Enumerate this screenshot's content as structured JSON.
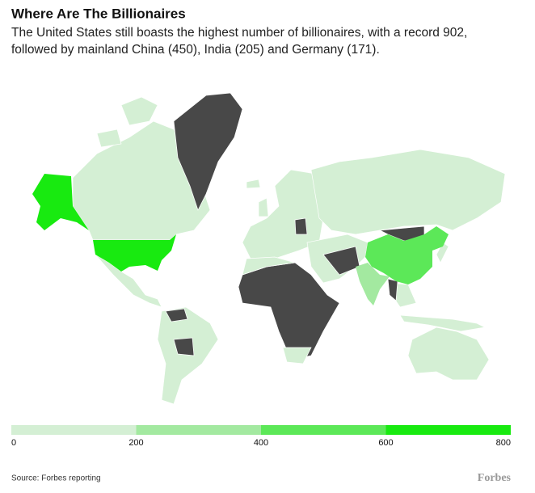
{
  "chart_data": {
    "type": "choropleth",
    "title": "Where Are The Billionaires",
    "subtitle": [
      "The United States still boasts the highest number of billionaires, with a record 902,",
      "followed by mainland China (450), India (205) and Germany (171)."
    ],
    "values": [
      902,
      450,
      205,
      171
    ],
    "legend": {
      "ticks": [
        0,
        200,
        400,
        600,
        800
      ],
      "colors": [
        "#d4efd4",
        "#a3e9a0",
        "#5ce858",
        "#18ea10"
      ]
    },
    "no_data_color": "#484848",
    "source": "Source: Forbes reporting",
    "logo": "Forbes"
  }
}
